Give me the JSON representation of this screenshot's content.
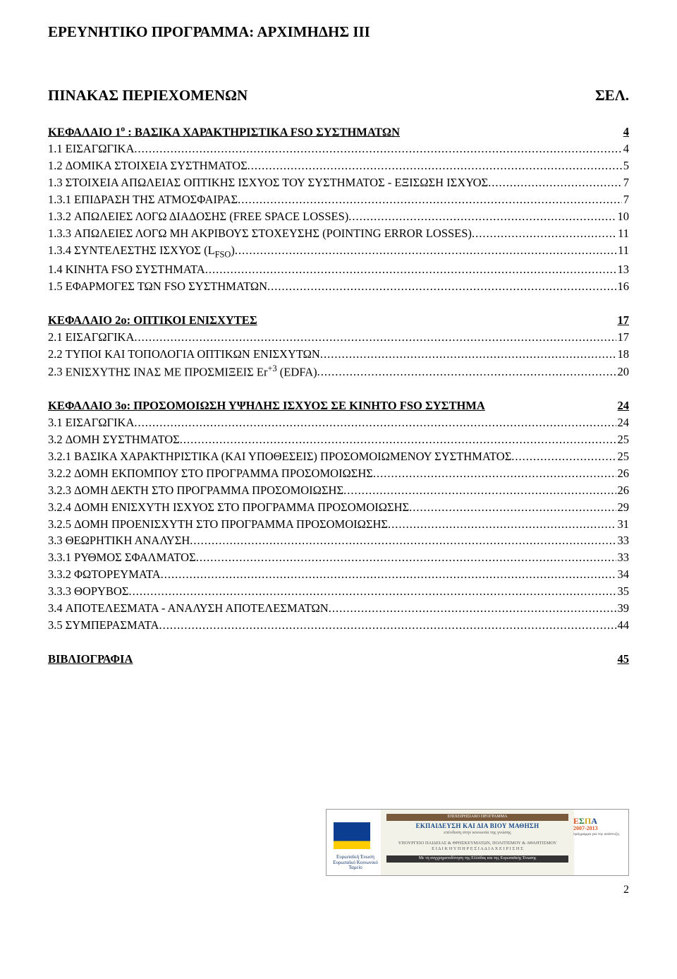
{
  "colors": {
    "text": "#000000",
    "background": "#ffffff",
    "footer_border": "#999999"
  },
  "typography": {
    "font_family": "Times New Roman",
    "body_size_pt": 12,
    "header_size_pt": 16,
    "title_size_pt": 16
  },
  "header": "ΕΡΕΥΝΗΤΙΚΟ ΠΡΟΓΡΑΜΜΑ: ΑΡΧΙΜΗΔΗΣ ΙΙΙ",
  "toc_title": "ΠΙΝΑΚΑΣ ΠΕΡΙΕΧΟΜΕΝΩΝ",
  "toc_title_page": "ΣΕΛ.",
  "chapters": [
    {
      "title_l": "ΚΕΦΑΛΑΙΟ 1",
      "title_sup": "ο",
      "title_r": " : ΒΑΣΙΚΑ ΧΑΡΑΚΤΗΡΙΣΤΙΚΑ FSO ΣΥΣΤΗΜΑΤΩΝ",
      "page": "4",
      "entries": [
        {
          "num": "1.1",
          "text": "ΕΙΣΑΓΩΓΙΚΑ",
          "page": "4"
        },
        {
          "num": "1.2",
          "text": "ΔΟΜΙΚΑ ΣΤΟΙΧΕΙΑ ΣΥΣΤΗΜΑΤΟΣ",
          "page": "5"
        },
        {
          "num": "1.3",
          "text": "ΣΤΟΙΧΕΙΑ ΑΠΩΛΕΙΑΣ ΟΠΤΙΚΗΣ ΙΣΧΥΟΣ ΤΟΥ ΣΥΣΤΗΜΑΤΟΣ - ΕΞΙΣΩΣΗ ΙΣΧΥΟΣ",
          "page": "7"
        },
        {
          "num": "1.3.1",
          "text": "ΕΠΙΔΡΑΣΗ ΤΗΣ ΑΤΜΟΣΦΑΙΡΑΣ",
          "page": "7"
        },
        {
          "num": "1.3.2",
          "text": "ΑΠΩΛΕΙΕΣ ΛΟΓΩ ΔΙΑΔΟΣΗΣ (FREE SPACE LOSSES)",
          "page": "10"
        },
        {
          "num": "1.3.3",
          "text": "ΑΠΩΛΕΙΕΣ ΛΟΓΩ ΜΗ ΑΚΡΙΒΟΥΣ ΣΤΟΧΕΥΣΗΣ (POINTING ERROR LOSSES)",
          "page": "11"
        },
        {
          "num": "1.3.4",
          "text": "ΣΥΝΤΕΛΕΣΤΗΣ ΙΣΧΥΟΣ (L",
          "text_sub": "FSO",
          "text_after": ")",
          "page": "11"
        },
        {
          "num": "1.4",
          "text": "ΚΙΝΗΤΑ FSO ΣΥΣΤΗΜΑΤΑ",
          "page": "13"
        },
        {
          "num": "1.5",
          "text": "ΕΦΑΡΜΟΓΕΣ ΤΩΝ FSO ΣΥΣΤΗΜΑΤΩΝ",
          "page": "16"
        }
      ]
    },
    {
      "title_l": "ΚΕΦΑΛΑΙΟ 2ο:  ΟΠΤΙΚΟΙ ΕΝΙΣΧΥΤΕΣ",
      "page": "17",
      "entries": [
        {
          "num": "2.1",
          "text": "ΕΙΣΑΓΩΓΙΚΑ",
          "page": "17"
        },
        {
          "num": "2.2",
          "text": "ΤΥΠΟΙ ΚΑΙ ΤΟΠΟΛΟΓΙΑ ΟΠΤΙΚΩΝ ΕΝΙΣΧΥΤΩΝ",
          "page": "18"
        },
        {
          "num": "2.3",
          "text": "ΕΝΙΣΧΥΤΗΣ ΙΝΑΣ ΜΕ ΠΡΟΣΜΙΞΕΙΣ Er",
          "text_sup": "+3",
          "text_after": " (EDFA)",
          "page": "20"
        }
      ]
    },
    {
      "title_l": "ΚΕΦΑΛΑΙΟ 3ο: ΠΡΟΣΟΜΟΙΩΣΗ ΥΨΗΛΗΣ ΙΣΧΥΟΣ ΣΕ ΚΙΝΗΤΟ FSO ΣΥΣΤΗΜΑ",
      "page": "24",
      "entries": [
        {
          "num": "3.1",
          "text": "ΕΙΣΑΓΩΓΙΚΑ",
          "page": "24"
        },
        {
          "num": "3.2",
          "text": "ΔΟΜΗ ΣΥΣΤΗΜΑΤΟΣ",
          "page": "25"
        },
        {
          "num": "3.2.1",
          "text": "ΒΑΣΙΚΑ ΧΑΡΑΚΤΗΡΙΣΤΙΚΑ (ΚΑΙ ΥΠΟΘΕΣΕΙΣ) ΠΡΟΣΟΜΟΙΩΜΕΝΟΥ ΣΥΣΤΗΜΑΤΟΣ",
          "page": "25"
        },
        {
          "num": "3.2.2",
          "text": "ΔΟΜΗ ΕΚΠΟΜΠΟΥ ΣΤΟ ΠΡΟΓΡΑΜΜΑ ΠΡΟΣΟΜΟΙΩΣΗΣ",
          "page": "26"
        },
        {
          "num": "3.2.3",
          "text": "ΔΟΜΗ ΔΕΚΤΗ ΣΤΟ ΠΡΟΓΡΑΜΜΑ ΠΡΟΣΟΜΟΙΩΣΗΣ",
          "page": "26"
        },
        {
          "num": "3.2.4",
          "text": "ΔΟΜΗ ΕΝΙΣΧΥΤΗ ΙΣΧΥΟΣ ΣΤΟ ΠΡΟΓΡΑΜΜΑ ΠΡΟΣΟΜΟΙΩΣΗΣ",
          "page": "29"
        },
        {
          "num": "3.2.5",
          "text": "ΔΟΜΗ ΠΡΟΕΝΙΣΧΥΤΗ ΣΤΟ ΠΡΟΓΡΑΜΜΑ ΠΡΟΣΟΜΟΙΩΣΗΣ",
          "page": "31"
        },
        {
          "num": "3.3",
          "text": "ΘΕΩΡΗΤΙΚΗ ΑΝΑΛΥΣΗ",
          "page": "33"
        },
        {
          "num": "3.3.1",
          "text": "ΡΥΘΜΟΣ ΣΦΑΛΜΑΤΟΣ",
          "page": "33"
        },
        {
          "num": "3.3.2",
          "text": "ΦΩΤΟΡΕΥΜΑΤΑ",
          "page": "34"
        },
        {
          "num": "3.3.3",
          "text": "ΘΟΡΥΒΟΣ",
          "page": "35"
        },
        {
          "num": "3.4",
          "text": "ΑΠΟΤΕΛΕΣΜΑΤΑ - ΑΝΑΛΥΣΗ ΑΠΟΤΕΛΕΣΜΑΤΩΝ",
          "page": "39"
        },
        {
          "num": "3.5",
          "text": "ΣΥΜΠΕΡΑΣΜΑΤΑ",
          "page": "44"
        }
      ]
    }
  ],
  "bibliography": {
    "label": "ΒΙΒΛΙΟΓΡΑΦΙΑ",
    "page": "45"
  },
  "footer": {
    "eu_l1": "Ευρωπαϊκή Ένωση",
    "eu_l2": "Ευρωπαϊκό Κοινωνικό Ταμείο",
    "mid_bar": "ΕΠΙΧΕΙΡΗΣΙΑΚΟ ΠΡΟΓΡΑΜΜΑ",
    "mid_big": "ΕΚΠΑΙΔΕΥΣΗ ΚΑΙ ΔΙΑ ΒΙΟΥ ΜΑΘΗΣΗ",
    "mid_sub": "επένδυση στην κοινωνία της γνώσης",
    "mid_min": "ΥΠΟΥΡΓΕΙΟ ΠΑΙΔΕΙΑΣ & ΘΡΗΣΚΕΥΜΑΤΩΝ, ΠΟΛΙΤΙΣΜΟΥ & ΑΘΛΗΤΙΣΜΟΥ",
    "mid_eyd": "Ε Ι Δ Ι Κ Η   Υ Π Η Ρ Ε Σ Ι Α   Δ Ι Α Χ Ε Ι Ρ Ι Σ Η Σ",
    "mid_bot": "Με τη συγχρηματοδότηση της Ελλάδας και της Ευρωπαϊκής Ένωσης",
    "espa_years": "2007-2013",
    "espa_sub": "πρόγραμμα για την ανάπτυξη"
  },
  "page_number": "2"
}
